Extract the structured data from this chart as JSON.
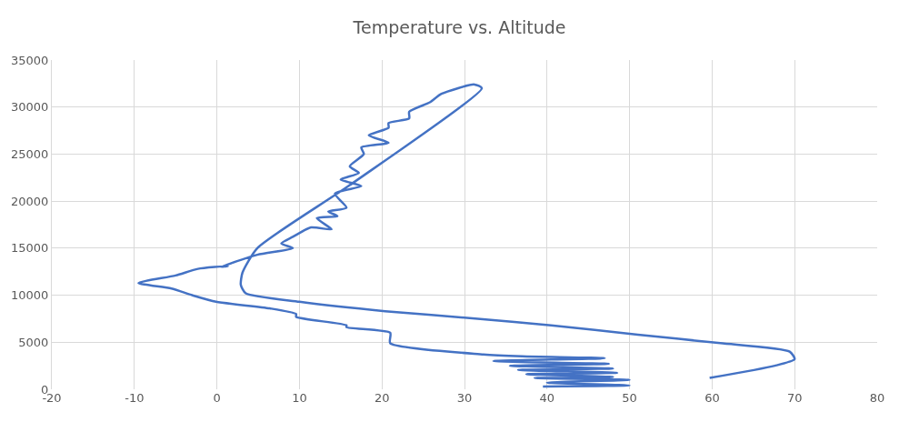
{
  "chart_data": {
    "type": "line",
    "title": "Temperature vs. Altitude",
    "x": [
      39.5,
      50,
      40,
      50,
      38.5,
      48,
      37.5,
      48.5,
      36.5,
      48,
      35.5,
      47.5,
      33.5,
      47,
      37,
      32.3,
      21,
      21,
      15.7,
      15.7,
      9.6,
      9.6,
      6.4,
      -0.1,
      -3,
      -5.5,
      -9.5,
      -5,
      -2.3,
      1.3,
      0.5,
      4.9,
      9.2,
      7.8,
      9.2,
      11.4,
      13.9,
      12.1,
      14.6,
      13.5,
      15.7,
      14.3,
      17.5,
      15,
      17.2,
      16.1,
      17.8,
      17.5,
      20.8,
      18.4,
      20.8,
      20.8,
      23.3,
      23.3,
      25.8,
      27.2,
      31.2,
      32.1,
      16.1,
      4.9,
      3.1,
      2.9,
      3.5,
      10,
      20.4,
      31.6,
      40.5,
      51,
      61,
      69.4,
      70,
      67.6,
      59.7
    ],
    "values": [
      300,
      400,
      700,
      1000,
      1200,
      1300,
      1600,
      1750,
      2050,
      2200,
      2500,
      2700,
      3000,
      3300,
      3500,
      3700,
      4900,
      6000,
      6600,
      6800,
      7700,
      8000,
      8600,
      9300,
      10000,
      10700,
      11300,
      12100,
      12800,
      13100,
      13000,
      14300,
      15000,
      15500,
      16200,
      17200,
      17000,
      18200,
      18400,
      18900,
      19300,
      20800,
      21600,
      22300,
      23000,
      23700,
      25000,
      25700,
      26200,
      27000,
      27800,
      28300,
      28800,
      29500,
      30500,
      31400,
      32400,
      32000,
      21700,
      15000,
      12400,
      11100,
      10200,
      9300,
      8300,
      7500,
      6800,
      5800,
      4900,
      4000,
      3200,
      2500,
      1200
    ],
    "color": "#4472c4",
    "xlim": [
      -20,
      80
    ],
    "xticks": [
      -20,
      -10,
      0,
      10,
      20,
      30,
      40,
      50,
      60,
      70,
      80
    ],
    "ylim": [
      0,
      35000
    ],
    "yticks": [
      0,
      5000,
      10000,
      15000,
      20000,
      25000,
      30000,
      35000
    ],
    "grid": true,
    "marker": "none",
    "line_style": "solid"
  }
}
